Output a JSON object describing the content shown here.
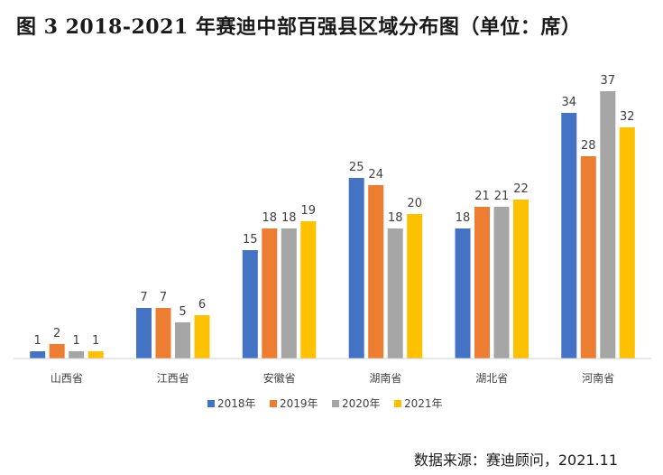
{
  "header": {
    "title": "图 3  2018-2021 年赛迪中部百强县区域分布图（单位：席）"
  },
  "footer": {
    "source": "数据来源：赛迪顾问，2021.11"
  },
  "chart_data": {
    "type": "bar",
    "categories": [
      "山西省",
      "江西省",
      "安徽省",
      "湖南省",
      "湖北省",
      "河南省"
    ],
    "series": [
      {
        "name": "2018年",
        "color": "#4472C4",
        "values": [
          1,
          7,
          15,
          25,
          18,
          34
        ]
      },
      {
        "name": "2019年",
        "color": "#ED7D31",
        "values": [
          2,
          7,
          18,
          24,
          21,
          28
        ]
      },
      {
        "name": "2020年",
        "color": "#A5A5A5",
        "values": [
          1,
          5,
          18,
          18,
          21,
          37
        ]
      },
      {
        "name": "2021年",
        "color": "#FFC000",
        "values": [
          1,
          6,
          19,
          20,
          22,
          32
        ]
      }
    ],
    "ylim": [
      0,
      37
    ],
    "grid": false,
    "legend_position": "bottom"
  }
}
